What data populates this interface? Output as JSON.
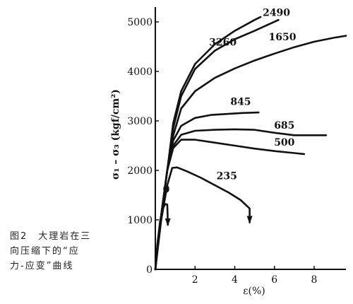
{
  "caption": "图2　大理岩在三\n向压缩下的“应\n力-应变”曲线",
  "chart_data": {
    "type": "line",
    "title": "",
    "xlabel": "ε(%)",
    "ylabel": "σ₁ – σ₃ (kgf/cm²)",
    "xlim": [
      0,
      9.6
    ],
    "ylim": [
      0,
      5300
    ],
    "xticks": [
      2,
      4,
      6,
      8
    ],
    "yticks": [
      0,
      1000,
      2000,
      3000,
      4000,
      5000
    ],
    "grid": false,
    "series": [
      {
        "name": "0",
        "x": [
          0,
          0.1,
          0.25,
          0.4,
          0.5,
          0.6,
          0.62,
          0.63
        ],
        "y": [
          0,
          500,
          1000,
          1250,
          1320,
          1310,
          1100,
          900
        ],
        "label_pos": [
          0.55,
          1550
        ]
      },
      {
        "name": "235",
        "x": [
          0,
          0.3,
          0.6,
          0.85,
          1.1,
          1.6,
          2.3,
          3.0,
          3.7,
          4.3,
          4.75,
          4.75
        ],
        "y": [
          0,
          1000,
          1700,
          2050,
          2060,
          1980,
          1850,
          1700,
          1550,
          1400,
          1230,
          950
        ],
        "label_pos": [
          3.6,
          1820
        ]
      },
      {
        "name": "500",
        "x": [
          0,
          0.3,
          0.6,
          0.9,
          1.3,
          2.0,
          3.0,
          4.0,
          5.0,
          6.0,
          7.0,
          7.5
        ],
        "y": [
          0,
          1100,
          2000,
          2450,
          2620,
          2620,
          2560,
          2500,
          2440,
          2390,
          2350,
          2330
        ],
        "label_pos": [
          6.5,
          2500
        ]
      },
      {
        "name": "685",
        "x": [
          0,
          0.3,
          0.6,
          0.9,
          1.3,
          2.0,
          3.0,
          4.0,
          5.0,
          6.0,
          7.0,
          8.0,
          8.6
        ],
        "y": [
          0,
          1100,
          2000,
          2500,
          2720,
          2800,
          2820,
          2830,
          2820,
          2760,
          2710,
          2710,
          2710
        ],
        "label_pos": [
          6.5,
          2840
        ]
      },
      {
        "name": "845",
        "x": [
          0,
          0.3,
          0.6,
          0.9,
          1.3,
          2.0,
          2.8,
          3.6,
          4.4,
          5.2
        ],
        "y": [
          0,
          1100,
          2000,
          2600,
          2900,
          3060,
          3120,
          3140,
          3160,
          3170
        ],
        "label_pos": [
          4.3,
          3320
        ]
      },
      {
        "name": "1650",
        "x": [
          0,
          0.3,
          0.6,
          0.9,
          1.3,
          2.0,
          3.0,
          4.0,
          5.0,
          6.0,
          7.0,
          8.0,
          9.0,
          9.6
        ],
        "y": [
          0,
          1100,
          2000,
          2700,
          3250,
          3600,
          3870,
          4060,
          4220,
          4360,
          4490,
          4600,
          4680,
          4720
        ],
        "label_pos": [
          6.4,
          4630
        ]
      },
      {
        "name": "2490",
        "x": [
          0,
          0.3,
          0.6,
          0.9,
          1.3,
          2.0,
          3.0,
          4.0,
          5.0,
          6.2
        ],
        "y": [
          0,
          1100,
          2000,
          2850,
          3500,
          4050,
          4420,
          4650,
          4820,
          5040
        ],
        "label_pos": [
          6.1,
          5120
        ]
      },
      {
        "name": "3260",
        "x": [
          0,
          0.3,
          0.6,
          0.9,
          1.3,
          2.0,
          3.0,
          4.0,
          5.0,
          5.3
        ],
        "y": [
          0,
          1100,
          2000,
          2950,
          3600,
          4150,
          4550,
          4820,
          5040,
          5100
        ],
        "label_pos": [
          3.4,
          4520
        ]
      }
    ]
  }
}
